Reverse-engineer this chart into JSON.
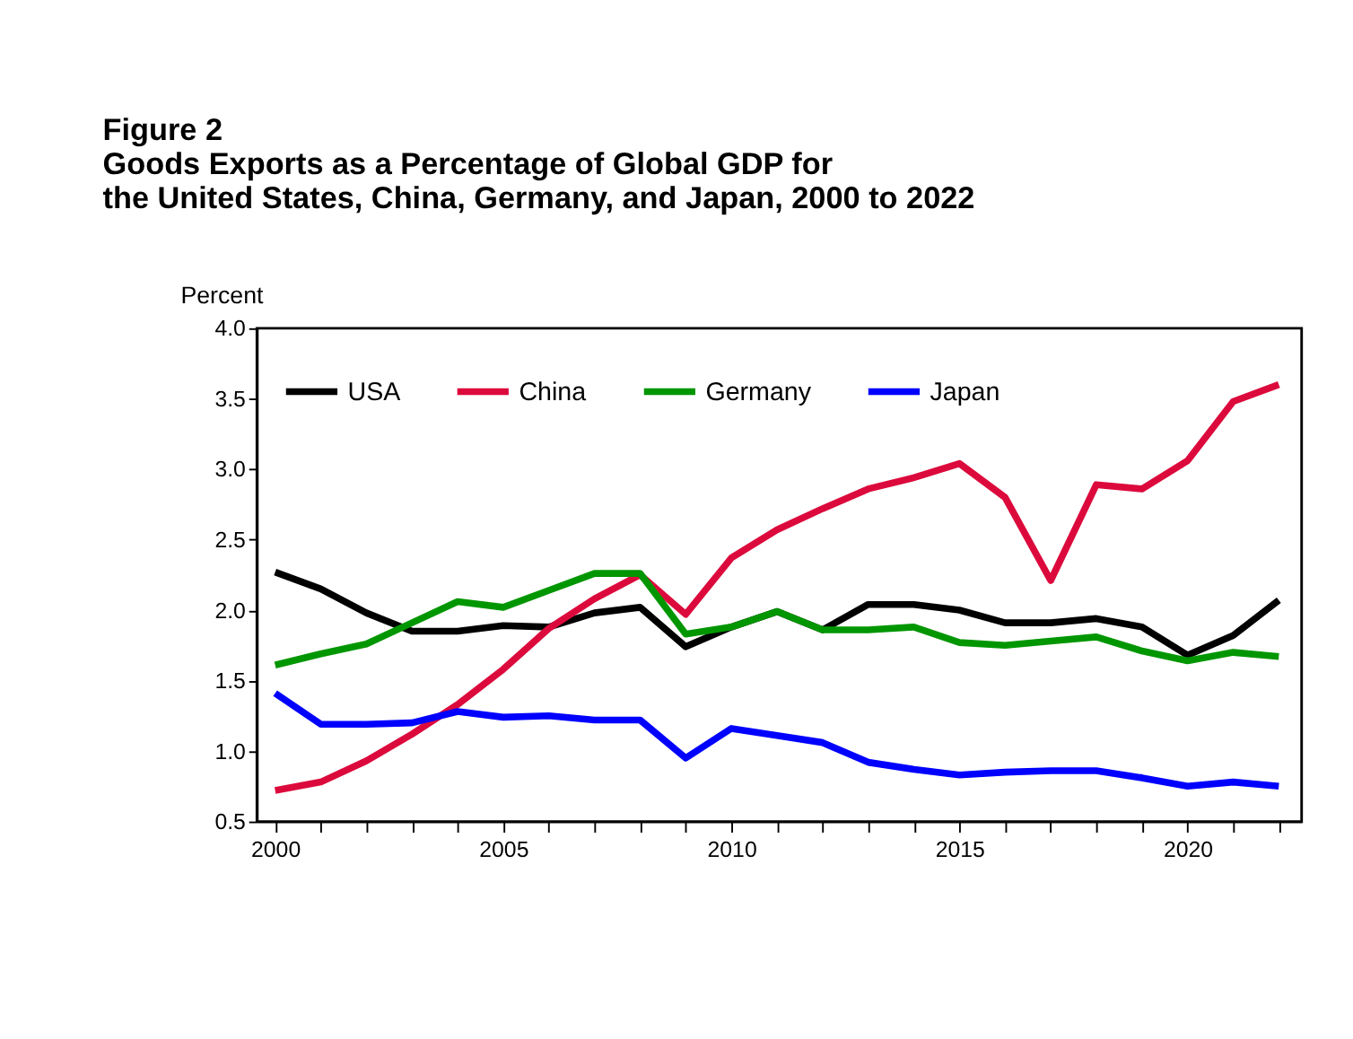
{
  "chart_data": {
    "type": "line",
    "title": "Figure 2",
    "subtitle": "Goods Exports as a Percentage of Global GDP for\nthe United States, China, Germany, and Japan, 2000 to 2022",
    "ylabel": "Percent",
    "x": [
      2000,
      2001,
      2002,
      2003,
      2004,
      2005,
      2006,
      2007,
      2008,
      2009,
      2010,
      2011,
      2012,
      2013,
      2014,
      2015,
      2016,
      2017,
      2018,
      2019,
      2020,
      2021,
      2022
    ],
    "series": [
      {
        "name": "USA",
        "color": "#000000",
        "values": [
          2.27,
          2.15,
          1.98,
          1.85,
          1.85,
          1.89,
          1.88,
          1.98,
          2.02,
          1.74,
          1.88,
          1.99,
          1.86,
          2.04,
          2.04,
          2.0,
          1.91,
          1.91,
          1.94,
          1.88,
          1.68,
          1.82,
          2.07
        ]
      },
      {
        "name": "China",
        "color": "#dc0a3c",
        "values": [
          0.72,
          0.78,
          0.93,
          1.12,
          1.33,
          1.58,
          1.87,
          2.08,
          2.25,
          1.97,
          2.37,
          2.57,
          2.72,
          2.86,
          2.94,
          3.04,
          2.8,
          2.21,
          2.89,
          2.86,
          3.06,
          3.48,
          3.6
        ]
      },
      {
        "name": "Germany",
        "color": "#009600",
        "values": [
          1.61,
          1.69,
          1.76,
          1.91,
          2.06,
          2.02,
          2.14,
          2.26,
          2.26,
          1.83,
          1.88,
          1.99,
          1.86,
          1.86,
          1.88,
          1.77,
          1.75,
          1.78,
          1.81,
          1.71,
          1.64,
          1.7,
          1.67
        ]
      },
      {
        "name": "Japan",
        "color": "#0000ff",
        "values": [
          1.41,
          1.19,
          1.19,
          1.2,
          1.28,
          1.24,
          1.25,
          1.22,
          1.22,
          0.95,
          1.16,
          1.11,
          1.06,
          0.92,
          0.87,
          0.83,
          0.85,
          0.86,
          0.86,
          0.81,
          0.75,
          0.78,
          0.75
        ]
      }
    ],
    "xlim": [
      1999.6,
      2022.5
    ],
    "ylim": [
      0.5,
      4.0
    ],
    "xticks": [
      2000,
      {
        "value": 2001,
        "label": null
      },
      {
        "value": 2002,
        "label": null
      },
      {
        "value": 2003,
        "label": null
      },
      {
        "value": 2004,
        "label": null
      },
      2005,
      {
        "value": 2006,
        "label": null
      },
      {
        "value": 2007,
        "label": null
      },
      {
        "value": 2008,
        "label": null
      },
      {
        "value": 2009,
        "label": null
      },
      2010,
      {
        "value": 2011,
        "label": null
      },
      {
        "value": 2012,
        "label": null
      },
      {
        "value": 2013,
        "label": null
      },
      {
        "value": 2014,
        "label": null
      },
      2015,
      {
        "value": 2016,
        "label": null
      },
      {
        "value": 2017,
        "label": null
      },
      {
        "value": 2018,
        "label": null
      },
      {
        "value": 2019,
        "label": null
      },
      2020,
      {
        "value": 2021,
        "label": null
      },
      {
        "value": 2022,
        "label": null
      }
    ],
    "yticks": [
      {
        "value": 0.5,
        "label": "0.5"
      },
      {
        "value": 1.0,
        "label": "1.0"
      },
      {
        "value": 1.5,
        "label": "1.5"
      },
      {
        "value": 2.0,
        "label": "2.0"
      },
      {
        "value": 2.5,
        "label": "2.5"
      },
      {
        "value": 3.0,
        "label": "3.0"
      },
      {
        "value": 3.5,
        "label": "3.5"
      },
      {
        "value": 4.0,
        "label": "4.0"
      }
    ],
    "grid": false,
    "legend": "top left",
    "marker": "none",
    "line_style": "solid"
  }
}
